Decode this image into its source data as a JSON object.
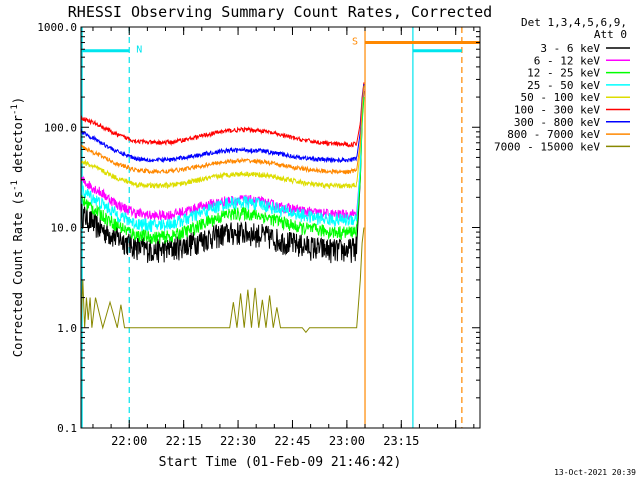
{
  "chart_data": {
    "type": "line",
    "title": "RHESSI Observing Summary Count Rates, Corrected",
    "xlabel": "Start Time (01-Feb-09 21:46:42)",
    "ylabel_main": "Corrected Count Rate (s",
    "ylabel_exp1": "-1",
    "ylabel_mid": " detector",
    "ylabel_exp2": "-1",
    "ylabel_end": ")",
    "y_scale": "log",
    "ylim": [
      0.1,
      1000
    ],
    "xlim_minutes": [
      0,
      110
    ],
    "x_tick_minutes": [
      13.3,
      28.3,
      43.3,
      58.3,
      73.3,
      88.3,
      103.3
    ],
    "x_tick_labels": [
      "22:00",
      "22:15",
      "22:30",
      "22:45",
      "23:00",
      "23:15",
      ""
    ],
    "y_tick_values": [
      0.1,
      1,
      10,
      100,
      1000
    ],
    "y_tick_labels": [
      "0.1",
      "1.0",
      "10.0",
      "100.0",
      "1000.0"
    ],
    "legend_header_1": "Det 1,3,4,5,6,9,",
    "legend_header_2": "Att 0",
    "footer_date": "13-Oct-2021 20:39",
    "flags": [
      {
        "label": "N",
        "color": "#00e5ee",
        "start": 0,
        "end": 13.3,
        "level": 580
      },
      {
        "label": "S",
        "color": "#ff8800",
        "start": 78.3,
        "end": 110,
        "level": 700
      },
      {
        "label": "",
        "color": "#00e5ee",
        "start": 91.5,
        "end": 105,
        "level": 580
      }
    ],
    "markers": [
      {
        "x": 0.3,
        "color": "#00e5ee",
        "style": "solid"
      },
      {
        "x": 13.3,
        "color": "#00e5ee",
        "style": "dashed"
      },
      {
        "x": 78.3,
        "color": "#ff8800",
        "style": "solid"
      },
      {
        "x": 91.5,
        "color": "#00e5ee",
        "style": "solid"
      },
      {
        "x": 105.0,
        "color": "#ff8800",
        "style": "dashed"
      }
    ],
    "series": [
      {
        "name": "3 - 6 keV",
        "color": "#000000",
        "x": [
          0,
          5,
          10,
          15,
          20,
          25,
          30,
          35,
          40,
          45,
          50,
          55,
          60,
          65,
          70,
          74,
          76,
          77,
          77.5,
          78
        ],
        "values": [
          14,
          10,
          8,
          6.5,
          6,
          6.2,
          7,
          8,
          8.8,
          9,
          8.5,
          7.5,
          6.8,
          6.3,
          6,
          6,
          6.5,
          30,
          120,
          230
        ],
        "noise": 0.28
      },
      {
        "name": "6 - 12 keV",
        "color": "#ff00ff",
        "x": [
          0,
          5,
          10,
          15,
          20,
          25,
          30,
          35,
          40,
          45,
          50,
          55,
          60,
          65,
          70,
          74,
          76,
          77,
          77.5,
          78
        ],
        "values": [
          30,
          23,
          17,
          14,
          13,
          13.5,
          15,
          17,
          18.5,
          19,
          18,
          16,
          15,
          14,
          13.5,
          13.5,
          14,
          40,
          140,
          240
        ],
        "noise": 0.12
      },
      {
        "name": "12 - 25 keV",
        "color": "#00ff00",
        "x": [
          0,
          5,
          10,
          15,
          20,
          25,
          30,
          35,
          40,
          45,
          50,
          55,
          60,
          65,
          70,
          74,
          76,
          77,
          77.5,
          78
        ],
        "values": [
          19,
          14,
          10.5,
          8.5,
          8,
          8.2,
          9.5,
          11.5,
          13.5,
          14,
          13,
          11.5,
          10,
          9.5,
          9,
          9,
          9.5,
          30,
          110,
          200
        ],
        "noise": 0.15
      },
      {
        "name": "25 - 50 keV",
        "color": "#00ffff",
        "x": [
          0,
          5,
          10,
          15,
          20,
          25,
          30,
          35,
          40,
          45,
          50,
          55,
          60,
          65,
          70,
          74,
          76,
          77,
          77.5,
          78
        ],
        "values": [
          24,
          18,
          13.5,
          11,
          10.5,
          11,
          12.5,
          15,
          17.5,
          18,
          17,
          15,
          13.5,
          12.5,
          12,
          12,
          12.5,
          40,
          150,
          260
        ],
        "noise": 0.15
      },
      {
        "name": "50 - 100 keV",
        "color": "#dddd00",
        "x": [
          0,
          5,
          10,
          15,
          20,
          25,
          30,
          35,
          40,
          45,
          50,
          55,
          60,
          65,
          70,
          74,
          76,
          77,
          77.5,
          78
        ],
        "values": [
          46,
          38,
          31,
          27,
          26,
          26.5,
          28.5,
          31,
          33.5,
          34.5,
          33.5,
          31,
          28.5,
          26.5,
          26,
          26,
          27,
          60,
          180,
          270
        ],
        "noise": 0.06
      },
      {
        "name": "100 - 300 keV",
        "color": "#ff0000",
        "x": [
          0,
          5,
          10,
          15,
          20,
          25,
          30,
          35,
          40,
          45,
          50,
          55,
          60,
          65,
          70,
          74,
          76,
          77,
          77.5,
          78
        ],
        "values": [
          125,
          105,
          84,
          73,
          70,
          71,
          77,
          85,
          92,
          95,
          92,
          84,
          76,
          71,
          68,
          67,
          69,
          110,
          200,
          280
        ],
        "noise": 0.05
      },
      {
        "name": "300 - 800 keV",
        "color": "#0000ff",
        "x": [
          0,
          5,
          10,
          15,
          20,
          25,
          30,
          35,
          40,
          45,
          50,
          55,
          60,
          65,
          70,
          74,
          76,
          77,
          77.5,
          78
        ],
        "values": [
          92,
          72,
          57,
          49,
          47,
          47.5,
          51,
          55,
          58.5,
          59.5,
          58,
          54,
          50,
          48,
          47,
          47,
          49,
          90,
          190,
          270
        ],
        "noise": 0.05
      },
      {
        "name": "800 - 7000 keV",
        "color": "#ff8800",
        "x": [
          0,
          5,
          10,
          15,
          20,
          25,
          30,
          35,
          40,
          45,
          50,
          55,
          60,
          65,
          70,
          74,
          76,
          77,
          77.5,
          78
        ],
        "values": [
          65,
          53,
          43,
          37.5,
          36,
          36.5,
          39,
          42.5,
          45.5,
          46.5,
          45.5,
          42,
          39,
          37,
          36,
          36,
          37.5,
          70,
          170,
          260
        ],
        "noise": 0.05
      },
      {
        "name": "7000 - 15000 keV",
        "color": "#888800",
        "x": [
          0,
          0.5,
          1,
          1.5,
          2,
          2.5,
          3,
          4,
          6,
          8,
          10,
          11,
          12,
          40,
          41,
          42,
          43,
          44,
          45,
          46,
          47,
          48,
          49,
          50,
          51,
          52,
          53,
          54,
          55,
          56,
          57,
          58,
          59,
          60,
          61,
          62,
          63,
          64,
          65,
          70,
          74,
          76,
          77,
          77.5,
          78
        ],
        "values": [
          1,
          3,
          1,
          2,
          1.2,
          2,
          1,
          2,
          1,
          1.8,
          1,
          1.7,
          1,
          1,
          1,
          1.8,
          1,
          2.2,
          1,
          2.4,
          1,
          2.5,
          1,
          1.9,
          1,
          2.1,
          1,
          1.6,
          1,
          1,
          1,
          1,
          1,
          1,
          1,
          0.9,
          1,
          1,
          1,
          1,
          1,
          1,
          3,
          7,
          10
        ],
        "noise": 0
      }
    ]
  }
}
